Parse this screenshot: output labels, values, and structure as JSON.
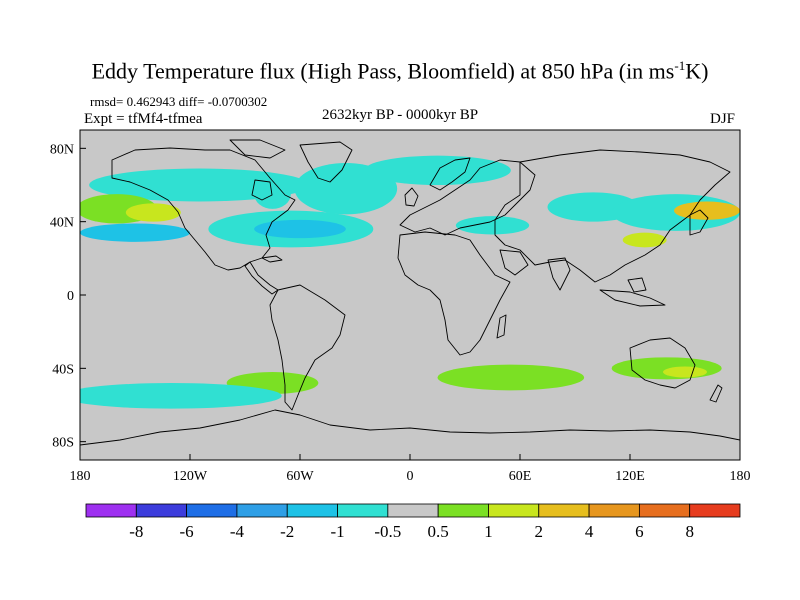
{
  "title": {
    "prefix": "Eddy Temperature flux (High Pass, Bloomfield) at 850 hPa (in ms",
    "superscript": "-1",
    "suffix": "K)"
  },
  "stats": "rmsd= 0.462943 diff= -0.0700302",
  "experiment": "Expt = tfMf4-tfmea",
  "period": "2632kyr BP - 0000kyr BP",
  "season": "DJF",
  "map": {
    "projection": "cylindrical equidistant",
    "lon_range": [
      -180,
      180
    ],
    "lat_range": [
      -90,
      90
    ],
    "background_color": "#c8c8c8",
    "lon_ticks": [
      {
        "value": -180,
        "label": "180"
      },
      {
        "value": -120,
        "label": "120W"
      },
      {
        "value": -60,
        "label": "60W"
      },
      {
        "value": 0,
        "label": "0"
      },
      {
        "value": 60,
        "label": "60E"
      },
      {
        "value": 120,
        "label": "120E"
      },
      {
        "value": 180,
        "label": "180"
      }
    ],
    "lat_ticks": [
      {
        "value": 80,
        "label": "80N"
      },
      {
        "value": 40,
        "label": "40N"
      },
      {
        "value": 0,
        "label": "0"
      },
      {
        "value": -40,
        "label": "40S"
      },
      {
        "value": -80,
        "label": "80S"
      }
    ]
  },
  "colorbar": {
    "colors": [
      "#9e30f0",
      "#3c3cdc",
      "#1e6ee6",
      "#2e9fe6",
      "#1ec2e6",
      "#30e0d2",
      "#c8c8c8",
      "#7be024",
      "#c8e61e",
      "#e6be1e",
      "#e6961e",
      "#e66e1e",
      "#e63c1e"
    ],
    "labels": [
      "-8",
      "-6",
      "-4",
      "-2",
      "-1",
      "-0.5",
      "0.5",
      "1",
      "2",
      "4",
      "6",
      "8"
    ]
  },
  "anomalies": [
    {
      "lon": -115,
      "lat": 60,
      "rx": 60,
      "ry": 9,
      "color": "#30e0d2"
    },
    {
      "lon": -160,
      "lat": 47,
      "rx": 22,
      "ry": 8,
      "color": "#7be024"
    },
    {
      "lon": -140,
      "lat": 45,
      "rx": 15,
      "ry": 5,
      "color": "#c8e61e"
    },
    {
      "lon": -150,
      "lat": 34,
      "rx": 30,
      "ry": 5,
      "color": "#1ec2e6"
    },
    {
      "lon": -75,
      "lat": 55,
      "rx": 10,
      "ry": 8,
      "color": "#30e0d2"
    },
    {
      "lon": -65,
      "lat": 36,
      "rx": 45,
      "ry": 10,
      "color": "#30e0d2"
    },
    {
      "lon": -60,
      "lat": 36,
      "rx": 25,
      "ry": 5,
      "color": "#1ec2e6"
    },
    {
      "lon": -35,
      "lat": 58,
      "rx": 28,
      "ry": 14,
      "color": "#30e0d2"
    },
    {
      "lon": 15,
      "lat": 68,
      "rx": 40,
      "ry": 8,
      "color": "#30e0d2"
    },
    {
      "lon": 45,
      "lat": 38,
      "rx": 20,
      "ry": 5,
      "color": "#30e0d2"
    },
    {
      "lon": 100,
      "lat": 48,
      "rx": 25,
      "ry": 8,
      "color": "#30e0d2"
    },
    {
      "lon": 145,
      "lat": 45,
      "rx": 35,
      "ry": 10,
      "color": "#30e0d2"
    },
    {
      "lon": 162,
      "lat": 46,
      "rx": 18,
      "ry": 5,
      "color": "#e6be1e"
    },
    {
      "lon": 128,
      "lat": 30,
      "rx": 12,
      "ry": 4,
      "color": "#c8e61e"
    },
    {
      "lon": -75,
      "lat": -48,
      "rx": 25,
      "ry": 6,
      "color": "#7be024"
    },
    {
      "lon": -130,
      "lat": -55,
      "rx": 60,
      "ry": 7,
      "color": "#30e0d2"
    },
    {
      "lon": 55,
      "lat": -45,
      "rx": 40,
      "ry": 7,
      "color": "#7be024"
    },
    {
      "lon": 140,
      "lat": -40,
      "rx": 30,
      "ry": 6,
      "color": "#7be024"
    },
    {
      "lon": 150,
      "lat": -42,
      "rx": 12,
      "ry": 3,
      "color": "#c8e61e"
    }
  ]
}
